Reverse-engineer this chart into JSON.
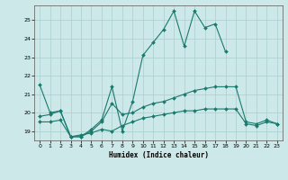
{
  "xlabel": "Humidex (Indice chaleur)",
  "series": [
    {
      "x": [
        0,
        1,
        2,
        3,
        4,
        5,
        6,
        7,
        8,
        9,
        10,
        11,
        12,
        13,
        14,
        15,
        16,
        17,
        18
      ],
      "y": [
        21.5,
        20.0,
        20.1,
        18.7,
        18.7,
        19.1,
        19.6,
        21.4,
        19.0,
        20.6,
        23.1,
        23.8,
        24.5,
        25.5,
        23.6,
        25.5,
        24.6,
        24.8,
        23.3
      ]
    },
    {
      "x": [
        0,
        1,
        2,
        3,
        4,
        5,
        6,
        7,
        8,
        9,
        10,
        11,
        12,
        13,
        14,
        15,
        16,
        17,
        18,
        19,
        20,
        21,
        22,
        23
      ],
      "y": [
        19.8,
        19.9,
        20.1,
        18.7,
        18.7,
        19.0,
        19.5,
        20.5,
        19.9,
        20.0,
        20.3,
        20.5,
        20.6,
        20.8,
        21.0,
        21.2,
        21.3,
        21.4,
        21.4,
        21.4,
        19.5,
        19.4,
        19.6,
        19.4
      ]
    },
    {
      "x": [
        0,
        1,
        2,
        3,
        4,
        5,
        6,
        7,
        8,
        9,
        10,
        11,
        12,
        13,
        14,
        15,
        16,
        17,
        18,
        19,
        20,
        21,
        22,
        23
      ],
      "y": [
        19.5,
        19.5,
        19.6,
        18.7,
        18.8,
        18.9,
        19.1,
        19.0,
        19.3,
        19.5,
        19.7,
        19.8,
        19.9,
        20.0,
        20.1,
        20.1,
        20.2,
        20.2,
        20.2,
        20.2,
        19.4,
        19.3,
        19.5,
        19.4
      ]
    }
  ],
  "ylim": [
    18.5,
    25.8
  ],
  "yticks": [
    19,
    20,
    21,
    22,
    23,
    24,
    25
  ],
  "xticks": [
    0,
    1,
    2,
    3,
    4,
    5,
    6,
    7,
    8,
    9,
    10,
    11,
    12,
    13,
    14,
    15,
    16,
    17,
    18,
    19,
    20,
    21,
    22,
    23
  ],
  "line_color": "#1a7a6e",
  "bg_color": "#cce8e8",
  "grid_color": "#aacece"
}
